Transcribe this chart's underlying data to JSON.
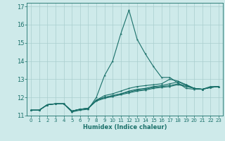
{
  "title": "",
  "xlabel": "Humidex (Indice chaleur)",
  "xlim": [
    -0.5,
    23.5
  ],
  "ylim": [
    11.0,
    17.2
  ],
  "yticks": [
    11,
    12,
    13,
    14,
    15,
    16,
    17
  ],
  "xticks": [
    0,
    1,
    2,
    3,
    4,
    5,
    6,
    7,
    8,
    9,
    10,
    11,
    12,
    13,
    14,
    15,
    16,
    17,
    18,
    19,
    20,
    21,
    22,
    23
  ],
  "bg_color": "#ceeaea",
  "grid_color": "#aacece",
  "line_color": "#1a706a",
  "lines": [
    [
      11.3,
      11.3,
      11.6,
      11.65,
      11.65,
      11.2,
      11.3,
      11.35,
      12.0,
      13.2,
      14.0,
      15.5,
      16.8,
      15.2,
      14.4,
      13.7,
      13.1,
      13.1,
      12.8,
      12.5,
      12.45,
      12.45,
      12.6,
      12.6
    ],
    [
      11.3,
      11.3,
      11.6,
      11.65,
      11.65,
      11.25,
      11.35,
      11.4,
      11.85,
      12.1,
      12.2,
      12.35,
      12.5,
      12.6,
      12.65,
      12.7,
      12.75,
      13.0,
      12.9,
      12.7,
      12.5,
      12.45,
      12.55,
      12.6
    ],
    [
      11.3,
      11.3,
      11.6,
      11.65,
      11.65,
      11.25,
      11.35,
      11.4,
      11.85,
      12.0,
      12.1,
      12.2,
      12.35,
      12.45,
      12.5,
      12.6,
      12.65,
      12.75,
      12.85,
      12.7,
      12.5,
      12.45,
      12.55,
      12.6
    ],
    [
      11.3,
      11.3,
      11.6,
      11.65,
      11.65,
      11.25,
      11.35,
      11.4,
      11.85,
      12.0,
      12.1,
      12.2,
      12.3,
      12.4,
      12.45,
      12.55,
      12.6,
      12.65,
      12.75,
      12.65,
      12.5,
      12.45,
      12.55,
      12.6
    ],
    [
      11.3,
      11.3,
      11.6,
      11.65,
      11.65,
      11.25,
      11.35,
      11.4,
      11.8,
      11.95,
      12.05,
      12.15,
      12.25,
      12.35,
      12.4,
      12.5,
      12.55,
      12.6,
      12.7,
      12.6,
      12.5,
      12.45,
      12.55,
      12.6
    ]
  ]
}
